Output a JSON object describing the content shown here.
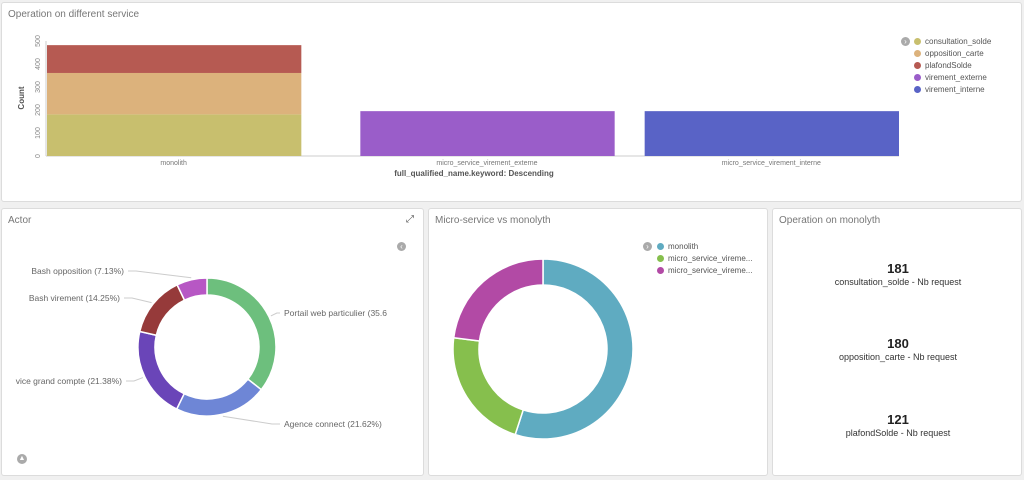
{
  "panels": {
    "service": {
      "title": "Operation on different service",
      "legend": [
        {
          "name": "consultation_solde",
          "color": "#c8bf6e"
        },
        {
          "name": "opposition_carte",
          "color": "#dcb27c"
        },
        {
          "name": "plafondSolde",
          "color": "#b65a52"
        },
        {
          "name": "virement_externe",
          "color": "#9a5dc9"
        },
        {
          "name": "virement_interne",
          "color": "#5963c6"
        }
      ]
    },
    "actor": {
      "title": "Actor",
      "expand_icon": "expand-icon",
      "collapse_icon": "chevron-up-icon"
    },
    "micro": {
      "title": "Micro-service vs monolyth",
      "legend": [
        {
          "name": "monolith",
          "color": "#5fabc1"
        },
        {
          "name": "micro_service_vireme...",
          "color": "#86bf4d"
        },
        {
          "name": "micro_service_vireme...",
          "color": "#b24aa5"
        }
      ]
    },
    "monolyth": {
      "title": "Operation on monolyth",
      "metrics": [
        {
          "value": "181",
          "label": "consultation_solde - Nb request"
        },
        {
          "value": "180",
          "label": "opposition_carte - Nb request"
        },
        {
          "value": "121",
          "label": "plafondSolde - Nb request"
        }
      ]
    }
  },
  "chart_data": [
    {
      "type": "bar",
      "stacked": true,
      "title": "Operation on different service",
      "xlabel": "full_qualified_name.keyword: Descending",
      "ylabel": "Count",
      "ylim": [
        0,
        500
      ],
      "yticks": [
        0,
        100,
        200,
        300,
        400,
        500
      ],
      "categories": [
        "monolith",
        "micro_service_virement_externe",
        "micro_service_virement_interne"
      ],
      "series": [
        {
          "name": "consultation_solde",
          "color": "#c8bf6e",
          "values": [
            181,
            0,
            0
          ]
        },
        {
          "name": "opposition_carte",
          "color": "#dcb27c",
          "values": [
            180,
            0,
            0
          ]
        },
        {
          "name": "plafondSolde",
          "color": "#b65a52",
          "values": [
            121,
            0,
            0
          ]
        },
        {
          "name": "virement_externe",
          "color": "#9a5dc9",
          "values": [
            0,
            195,
            0
          ]
        },
        {
          "name": "virement_interne",
          "color": "#5963c6",
          "values": [
            0,
            0,
            195
          ]
        }
      ],
      "grid": false,
      "legend": "right"
    },
    {
      "type": "pie",
      "donut": true,
      "slices": [
        {
          "label": "Portail web particulier (35.6",
          "value": 35.6,
          "color": "#6dbf7d"
        },
        {
          "label": "Agence connect (21.62%)",
          "value": 21.62,
          "color": "#6e86d6"
        },
        {
          "label": "vice grand compte (21.38%)",
          "value": 21.38,
          "color": "#6a45b8"
        },
        {
          "label": "Bash virement (14.25%)",
          "value": 14.25,
          "color": "#963a3a"
        },
        {
          "label": "Bash opposition (7.13%)",
          "value": 7.13,
          "color": "#b757c4"
        }
      ]
    },
    {
      "type": "pie",
      "donut": true,
      "slices": [
        {
          "label": "monolith",
          "value": 55,
          "color": "#5fabc1"
        },
        {
          "label": "micro_service_vireme...",
          "value": 22,
          "color": "#86bf4d"
        },
        {
          "label": "micro_service_vireme...",
          "value": 23,
          "color": "#b24aa5"
        }
      ],
      "legend": "top-right"
    }
  ]
}
